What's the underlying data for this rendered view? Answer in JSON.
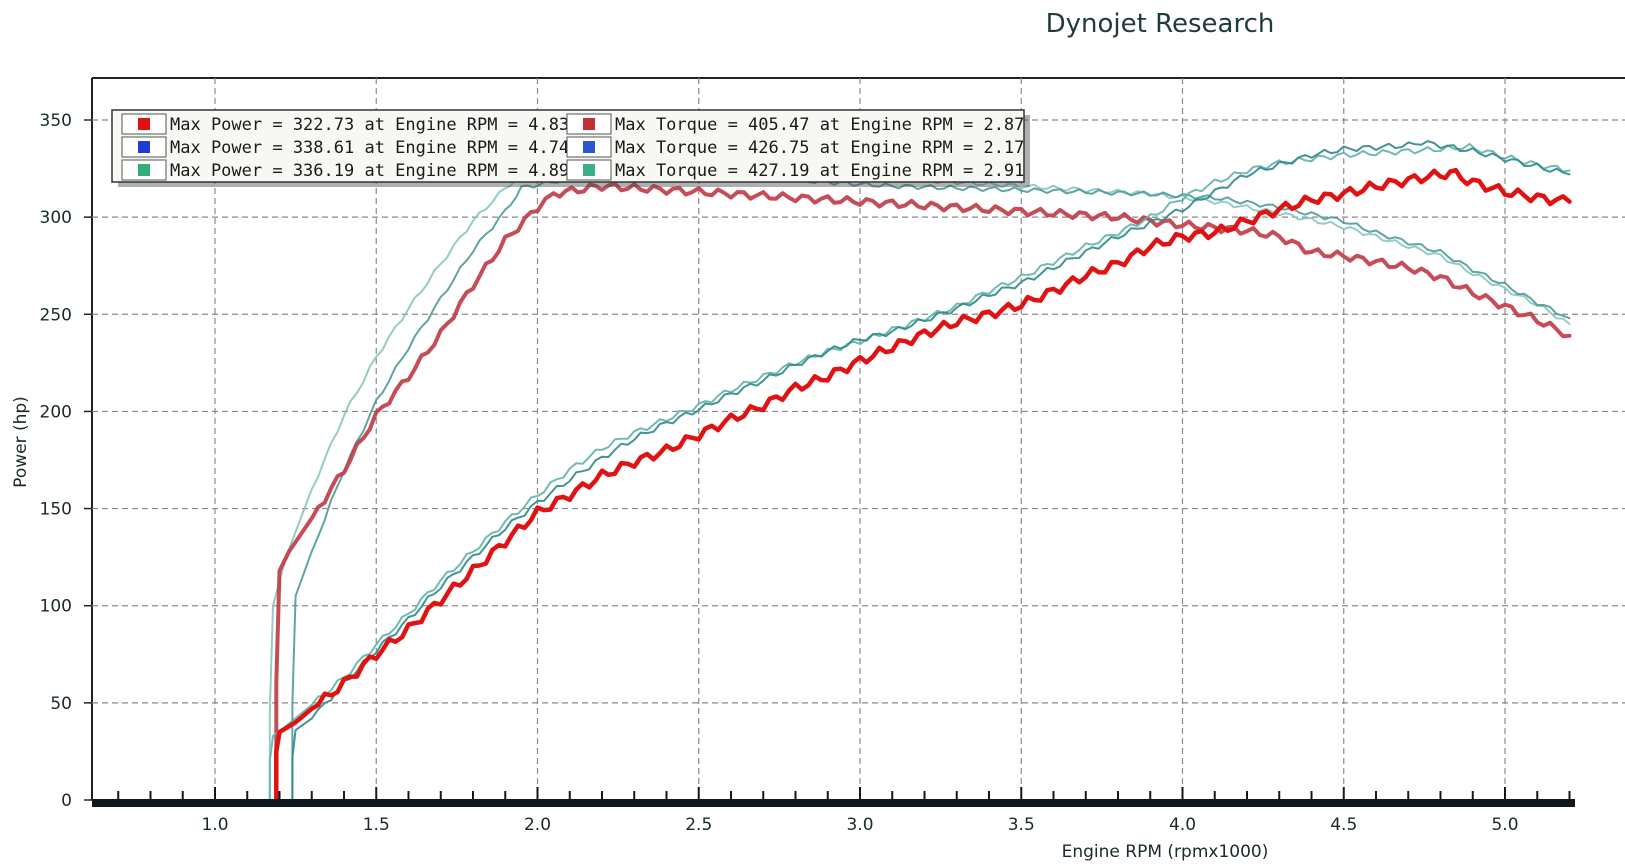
{
  "chart_data": {
    "type": "line",
    "title": "Dynojet Research",
    "xlabel": "Engine RPM (rpmx1000)",
    "ylabel": "Power (hp)",
    "xlim": [
      0.68,
      5.2
    ],
    "ylim": [
      0,
      370
    ],
    "xticks": [
      1.0,
      1.5,
      2.0,
      2.5,
      3.0,
      3.5,
      4.0,
      4.5,
      5.0
    ],
    "xtick_labels": [
      "1.0",
      "1.5",
      "2.0",
      "2.5",
      "3.0",
      "3.5",
      "4.0",
      "4.5",
      "5.0"
    ],
    "yticks": [
      0,
      50,
      100,
      150,
      200,
      250,
      300,
      350
    ],
    "ytick_labels": [
      "0",
      "50",
      "100",
      "150",
      "200",
      "250",
      "300",
      "350"
    ],
    "grid": true,
    "legend_position": "top-left",
    "legend": [
      {
        "text": "Max Power = 322.73 at Engine RPM = 4.83",
        "color": "#e01010",
        "column": 0
      },
      {
        "text": "Max Power = 338.61 at Engine RPM = 4.74",
        "color": "#1c3ed6",
        "column": 0
      },
      {
        "text": "Max Power = 336.19 at Engine RPM = 4.89",
        "color": "#2fae76",
        "column": 0
      },
      {
        "text": "Max Torque = 405.47 at Engine RPM = 2.87",
        "color": "#c03038",
        "column": 1
      },
      {
        "text": "Max Torque = 426.75 at Engine RPM = 2.17",
        "color": "#2b56d0",
        "column": 1
      },
      {
        "text": "Max Torque = 427.19 at Engine RPM = 2.91",
        "color": "#3caf88",
        "column": 1
      }
    ],
    "series": [
      {
        "kind": "power",
        "color": "#e01212",
        "width": 4.5,
        "x": [
          1.19,
          1.19,
          1.2,
          1.25,
          1.3,
          1.4,
          1.5,
          1.6,
          1.7,
          1.8,
          1.9,
          2.0,
          2.1,
          2.2,
          2.3,
          2.4,
          2.5,
          2.6,
          2.7,
          2.8,
          2.9,
          3.0,
          3.1,
          3.2,
          3.3,
          3.4,
          3.5,
          3.6,
          3.7,
          3.8,
          3.9,
          4.0,
          4.1,
          4.2,
          4.3,
          4.4,
          4.5,
          4.6,
          4.7,
          4.8,
          4.83,
          4.9,
          5.0,
          5.1,
          5.2
        ],
        "y": [
          0,
          25,
          35,
          40,
          47,
          60,
          75,
          88,
          103,
          118,
          133,
          148,
          157,
          167,
          174,
          180,
          188,
          196,
          203,
          212,
          218,
          226,
          233,
          240,
          246,
          250,
          255,
          262,
          270,
          276,
          285,
          290,
          292,
          298,
          304,
          309,
          312,
          316,
          319,
          322,
          323,
          318,
          313,
          310,
          308
        ],
        "wobble": 2.5
      },
      {
        "kind": "power",
        "color": "#2e8a88",
        "width": 2,
        "x": [
          1.24,
          1.24,
          1.25,
          1.3,
          1.4,
          1.5,
          1.6,
          1.7,
          1.8,
          1.9,
          2.0,
          2.1,
          2.2,
          2.3,
          2.4,
          2.5,
          2.6,
          2.7,
          2.8,
          2.9,
          3.0,
          3.1,
          3.2,
          3.3,
          3.4,
          3.5,
          3.6,
          3.7,
          3.8,
          3.9,
          4.0,
          4.1,
          4.2,
          4.3,
          4.4,
          4.5,
          4.6,
          4.7,
          4.74,
          4.8,
          4.9,
          5.0,
          5.1,
          5.2
        ],
        "y": [
          0,
          22,
          36,
          42,
          60,
          77,
          93,
          110,
          125,
          140,
          153,
          165,
          176,
          186,
          194,
          201,
          209,
          216,
          224,
          231,
          237,
          241,
          247,
          253,
          260,
          266,
          274,
          282,
          290,
          297,
          304,
          313,
          322,
          327,
          332,
          335,
          336,
          337,
          338.6,
          337,
          334,
          330,
          326,
          322
        ],
        "wobble": 1.5
      },
      {
        "kind": "power",
        "color": "#63b3a9",
        "width": 2,
        "x": [
          1.17,
          1.17,
          1.18,
          1.22,
          1.3,
          1.4,
          1.5,
          1.6,
          1.7,
          1.8,
          1.9,
          2.0,
          2.1,
          2.2,
          2.3,
          2.4,
          2.5,
          2.6,
          2.7,
          2.8,
          2.9,
          3.0,
          3.1,
          3.2,
          3.3,
          3.4,
          3.5,
          3.6,
          3.7,
          3.8,
          3.9,
          4.0,
          4.1,
          4.2,
          4.3,
          4.4,
          4.5,
          4.6,
          4.7,
          4.8,
          4.89,
          5.0,
          5.1,
          5.2
        ],
        "y": [
          0,
          20,
          33,
          38,
          49,
          63,
          80,
          96,
          113,
          128,
          143,
          157,
          170,
          181,
          189,
          196,
          203,
          211,
          218,
          225,
          231,
          236,
          242,
          248,
          254,
          262,
          269,
          277,
          285,
          292,
          300,
          310,
          318,
          324,
          328,
          330,
          332,
          333,
          334,
          335,
          336.2,
          331,
          327,
          324
        ],
        "wobble": 1.5
      },
      {
        "kind": "torque",
        "color": "#bf3a45",
        "width": 4,
        "x": [
          1.19,
          1.19,
          1.2,
          1.23,
          1.3,
          1.4,
          1.5,
          1.6,
          1.7,
          1.8,
          1.9,
          2.0,
          2.05,
          2.2,
          2.4,
          2.6,
          2.8,
          3.0,
          3.2,
          3.4,
          3.6,
          3.8,
          4.0,
          4.2,
          4.3,
          4.4,
          4.5,
          4.6,
          4.7,
          4.8,
          4.9,
          5.0,
          5.1,
          5.2
        ],
        "y": [
          0,
          60,
          118,
          128,
          145,
          170,
          198,
          218,
          240,
          265,
          288,
          305,
          312,
          316,
          314,
          312,
          310,
          308,
          306,
          304,
          302,
          300,
          296,
          293,
          290,
          282,
          280,
          277,
          274,
          269,
          261,
          254,
          247,
          239
        ],
        "wobble": 2.0
      },
      {
        "kind": "torque",
        "color": "#4f9b9a",
        "width": 2,
        "x": [
          1.24,
          1.24,
          1.25,
          1.3,
          1.4,
          1.5,
          1.6,
          1.7,
          1.8,
          1.9,
          1.95,
          2.1,
          2.3,
          2.5,
          2.7,
          2.9,
          3.1,
          3.3,
          3.5,
          3.7,
          3.9,
          4.1,
          4.3,
          4.5,
          4.6,
          4.7,
          4.8,
          4.9,
          5.0,
          5.1,
          5.2
        ],
        "y": [
          0,
          50,
          105,
          128,
          170,
          205,
          233,
          258,
          283,
          303,
          315,
          320,
          322,
          322,
          320,
          318,
          316,
          315,
          314,
          313,
          312,
          310,
          305,
          298,
          292,
          287,
          282,
          273,
          265,
          256,
          248
        ],
        "wobble": 1.2
      },
      {
        "kind": "torque",
        "color": "#88c7bf",
        "width": 2,
        "x": [
          1.17,
          1.17,
          1.18,
          1.22,
          1.3,
          1.4,
          1.5,
          1.6,
          1.7,
          1.8,
          1.9,
          1.95,
          2.1,
          2.3,
          2.5,
          2.7,
          2.91,
          3.1,
          3.3,
          3.5,
          3.7,
          3.9,
          4.1,
          4.3,
          4.5,
          4.6,
          4.7,
          4.8,
          4.9,
          5.0,
          5.1,
          5.2
        ],
        "y": [
          0,
          45,
          100,
          125,
          160,
          198,
          228,
          253,
          276,
          298,
          315,
          322,
          326,
          327,
          326,
          324,
          323,
          320,
          318,
          316,
          314,
          312,
          308,
          302,
          295,
          290,
          285,
          280,
          271,
          263,
          255,
          245
        ],
        "wobble": 1.2
      }
    ]
  }
}
